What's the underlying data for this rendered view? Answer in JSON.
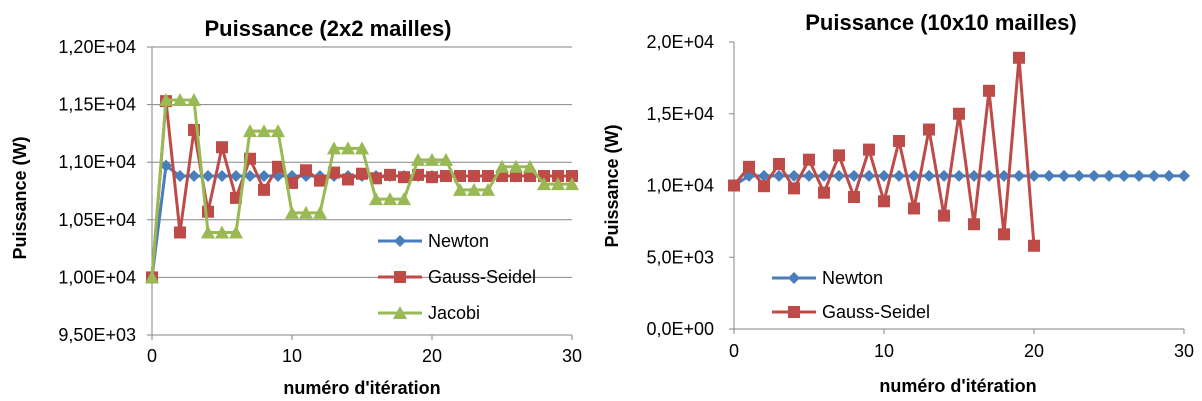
{
  "colors": {
    "newton": "#4a7ebb",
    "gauss": "#be4b48",
    "jacobi": "#98b954",
    "axis": "#868686"
  },
  "chart_data": [
    {
      "type": "line",
      "title": "Puissance (2x2 mailles)",
      "xlabel": "numéro d'itération",
      "ylabel": "Puissance (W)",
      "xlim": [
        0,
        30
      ],
      "ylim": [
        9500,
        12000
      ],
      "xticks": [
        0,
        10,
        20,
        30
      ],
      "yticks": [
        9500,
        10000,
        10500,
        11000,
        11500,
        12000
      ],
      "xtick_labels": [
        "0",
        "10",
        "20",
        "30"
      ],
      "ytick_labels": [
        "9,50E+03",
        "1,00E+04",
        "1,05E+04",
        "1,10E+04",
        "1,15E+04",
        "1,20E+04"
      ],
      "grid": "horizontal",
      "legend_position": "bottom-right",
      "series": [
        {
          "name": "Newton",
          "marker": "diamond",
          "color": "#4a7ebb",
          "x": [
            0,
            1,
            2,
            3,
            4,
            5,
            6,
            7,
            8,
            9,
            10,
            11,
            12,
            13,
            14,
            15,
            16,
            17,
            18,
            19,
            20,
            21,
            22,
            23,
            24,
            25,
            26,
            27,
            28,
            29,
            30
          ],
          "y": [
            10000,
            10970,
            10880,
            10880,
            10880,
            10880,
            10880,
            10880,
            10880,
            10880,
            10880,
            10880,
            10880,
            10880,
            10880,
            10880,
            10880,
            10880,
            10880,
            10880,
            10880,
            10880,
            10880,
            10880,
            10880,
            10880,
            10880,
            10880,
            10880,
            10880,
            10880
          ]
        },
        {
          "name": "Gauss-Seidel",
          "marker": "square",
          "color": "#be4b48",
          "x": [
            0,
            1,
            2,
            3,
            4,
            5,
            6,
            7,
            8,
            9,
            10,
            11,
            12,
            13,
            14,
            15,
            16,
            17,
            18,
            19,
            20,
            21,
            22,
            23,
            24,
            25,
            26,
            27,
            28,
            29,
            30
          ],
          "y": [
            10000,
            11530,
            10390,
            11280,
            10570,
            11130,
            10690,
            11030,
            10760,
            10960,
            10820,
            10930,
            10840,
            10910,
            10850,
            10900,
            10860,
            10890,
            10870,
            10890,
            10870,
            10880,
            10880,
            10880,
            10880,
            10880,
            10880,
            10880,
            10880,
            10880,
            10880
          ]
        },
        {
          "name": "Jacobi",
          "marker": "triangle",
          "color": "#98b954",
          "x": [
            0,
            1,
            2,
            3,
            4,
            5,
            6,
            7,
            8,
            9,
            10,
            11,
            12,
            13,
            14,
            15,
            16,
            17,
            18,
            19,
            20,
            21,
            22,
            23,
            24,
            25,
            26,
            27,
            28,
            29,
            30
          ],
          "y": [
            10000,
            11540,
            11540,
            11540,
            10390,
            10390,
            10390,
            11270,
            11270,
            11270,
            10560,
            10560,
            10560,
            11120,
            11120,
            11120,
            10680,
            10680,
            10680,
            11020,
            11020,
            11020,
            10760,
            10760,
            10760,
            10960,
            10960,
            10960,
            10810,
            10810,
            10810
          ]
        }
      ]
    },
    {
      "type": "line",
      "title": "Puissance (10x10 mailles)",
      "xlabel": "numéro d'itération",
      "ylabel": "Puissance (W)",
      "xlim": [
        0,
        30
      ],
      "ylim": [
        0,
        20000
      ],
      "xticks": [
        0,
        10,
        20,
        30
      ],
      "yticks": [
        0,
        5000,
        10000,
        15000,
        20000
      ],
      "xtick_labels": [
        "0",
        "10",
        "20",
        "30"
      ],
      "ytick_labels": [
        "0,0E+00",
        "5,0E+03",
        "1,0E+04",
        "1,5E+04",
        "2,0E+04"
      ],
      "grid": "none",
      "legend_position": "bottom-left",
      "series": [
        {
          "name": "Newton",
          "marker": "diamond",
          "color": "#4a7ebb",
          "x": [
            0,
            1,
            2,
            3,
            4,
            5,
            6,
            7,
            8,
            9,
            10,
            11,
            12,
            13,
            14,
            15,
            16,
            17,
            18,
            19,
            20,
            21,
            22,
            23,
            24,
            25,
            26,
            27,
            28,
            29,
            30
          ],
          "y": [
            10000,
            10670,
            10670,
            10670,
            10670,
            10670,
            10670,
            10670,
            10670,
            10670,
            10670,
            10670,
            10670,
            10670,
            10670,
            10670,
            10670,
            10670,
            10670,
            10670,
            10670,
            10670,
            10670,
            10670,
            10670,
            10670,
            10670,
            10670,
            10670,
            10670,
            10670
          ]
        },
        {
          "name": "Gauss-Seidel",
          "marker": "square",
          "color": "#be4b48",
          "x": [
            0,
            1,
            2,
            3,
            4,
            5,
            6,
            7,
            8,
            9,
            10,
            11,
            12,
            13,
            14,
            15,
            16,
            17,
            18,
            19,
            20
          ],
          "y": [
            10000,
            11300,
            9950,
            11500,
            9800,
            11800,
            9500,
            12100,
            9200,
            12500,
            8900,
            13100,
            8400,
            13900,
            7900,
            15000,
            7300,
            16600,
            6600,
            18900,
            5800
          ]
        }
      ]
    }
  ]
}
